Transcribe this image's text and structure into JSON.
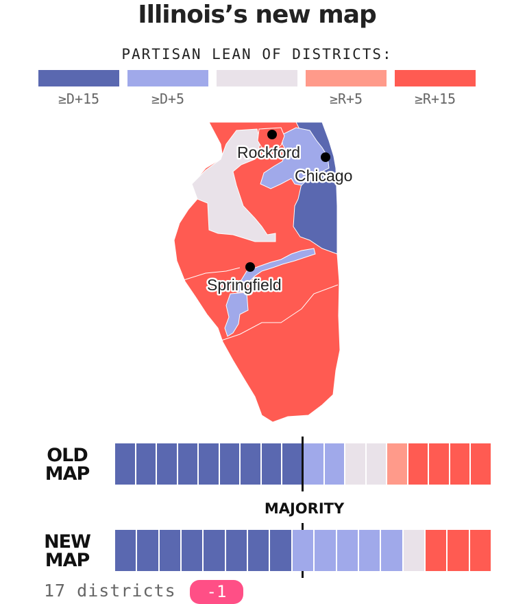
{
  "title": "Illinois’s new map",
  "legend": {
    "title": "PARTISAN LEAN OF DISTRICTS:",
    "items": [
      {
        "label": "≥D+15",
        "color": "#5a68b0"
      },
      {
        "label": "≥D+5",
        "color": "#a0a9ea"
      },
      {
        "label": "",
        "color": "#e9e2e9"
      },
      {
        "label": "≥R+5",
        "color": "#ff9a8a"
      },
      {
        "label": "≥R+15",
        "color": "#ff5b52"
      }
    ]
  },
  "map": {
    "cities": [
      {
        "name": "Rockford"
      },
      {
        "name": "Chicago"
      },
      {
        "name": "Springfield"
      }
    ]
  },
  "old_map": {
    "label_line1": "OLD",
    "label_line2": "MAP",
    "districts": [
      "D+15",
      "D+15",
      "D+15",
      "D+15",
      "D+15",
      "D+15",
      "D+15",
      "D+15",
      "D+15",
      "D+5",
      "D+5",
      "EVEN",
      "EVEN",
      "R+5",
      "R+15",
      "R+15",
      "R+15",
      "R+15"
    ]
  },
  "new_map": {
    "label_line1": "NEW",
    "label_line2": "MAP",
    "districts": [
      "D+15",
      "D+15",
      "D+15",
      "D+15",
      "D+15",
      "D+15",
      "D+15",
      "D+15",
      "D+5",
      "D+5",
      "D+5",
      "D+5",
      "D+5",
      "EVEN",
      "R+15",
      "R+15",
      "R+15"
    ]
  },
  "lean_colors": {
    "D+15": "#5a68b0",
    "D+5": "#a0a9ea",
    "EVEN": "#e9e2e9",
    "R+5": "#ff9a8a",
    "R+15": "#ff5b52"
  },
  "majority_label": "MAJORITY",
  "district_count": "17 districts",
  "change_badge": "-1"
}
